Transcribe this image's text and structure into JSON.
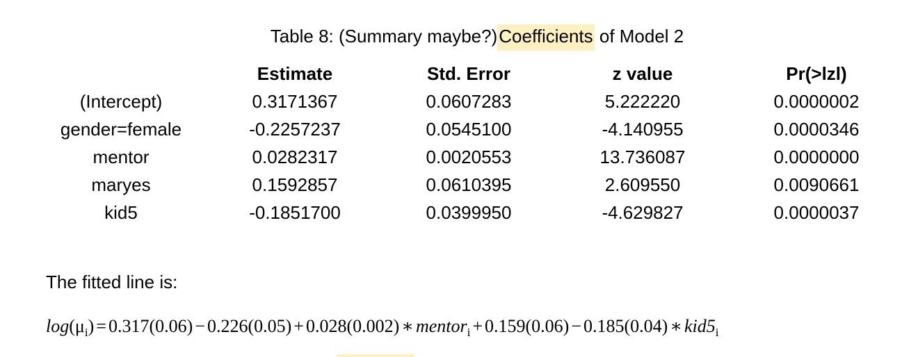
{
  "caption": {
    "prefix": "Table 8: (Summary maybe?)",
    "highlight": "Coefficients",
    "suffix": " of Model 2"
  },
  "table": {
    "headers": [
      "Estimate",
      "Std. Error",
      "z value",
      "Pr(>lzl)"
    ],
    "rows": [
      {
        "term": "(Intercept)",
        "estimate": "0.3171367",
        "std_error": "0.0607283",
        "z_value": "5.222220",
        "p_value": "0.0000002"
      },
      {
        "term": "gender=female",
        "estimate": "-0.2257237",
        "std_error": "0.0545100",
        "z_value": "-4.140955",
        "p_value": "0.0000346"
      },
      {
        "term": "mentor",
        "estimate": "0.0282317",
        "std_error": "0.0020553",
        "z_value": "13.736087",
        "p_value": "0.0000000"
      },
      {
        "term": "maryes",
        "estimate": "0.1592857",
        "std_error": "0.0610395",
        "z_value": "2.609550",
        "p_value": "0.0090661"
      },
      {
        "term": "kid5",
        "estimate": "-0.1851700",
        "std_error": "0.0399950",
        "z_value": "-4.629827",
        "p_value": "0.0000037"
      }
    ]
  },
  "fitted_line_label": "The fitted line is:",
  "formula": {
    "lhs_fn": "log",
    "lhs_open": "(",
    "lhs_var": "μ",
    "sub_i": "i",
    "lhs_close": ")",
    "eq": "=",
    "t1": "0.317(0.06)",
    "minus": "−",
    "t2": "0.226(0.05)",
    "plus": "+",
    "t3": "0.028(0.002)",
    "times": "∗",
    "var_mentor": "mentor",
    "t4": "0.159(0.06)",
    "t5": "0.185(0.04)",
    "var_kid5": "kid5"
  }
}
